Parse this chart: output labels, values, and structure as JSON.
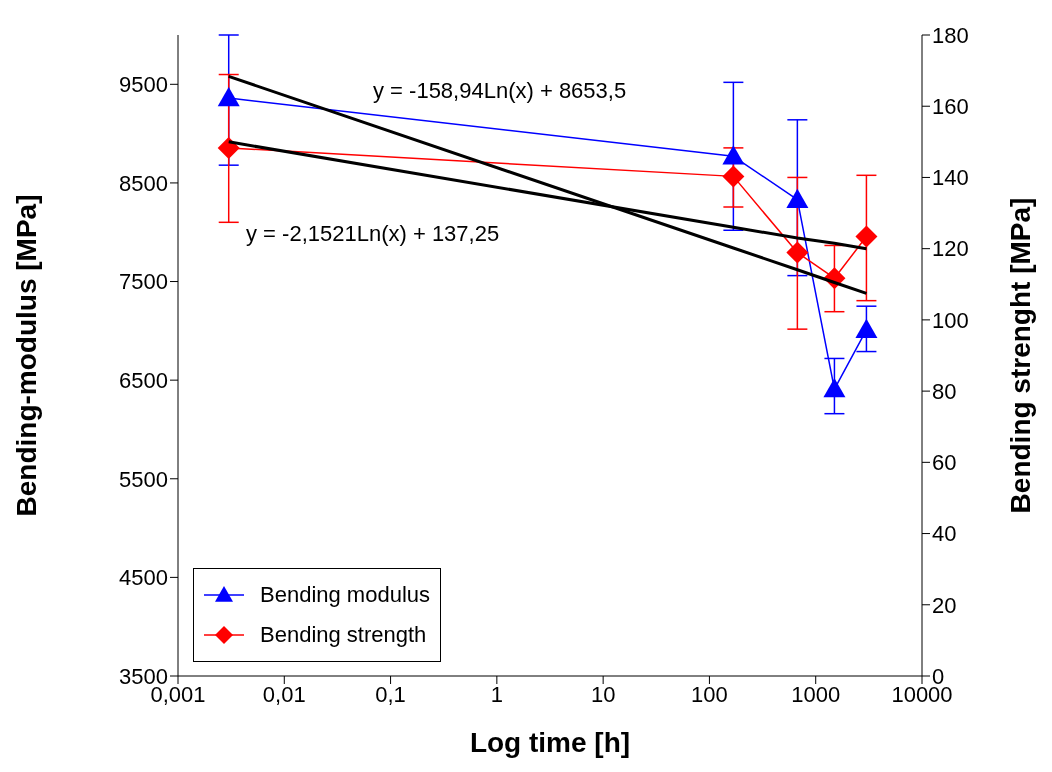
{
  "chart_data": {
    "type": "line",
    "xlabel": "Log time [h]",
    "ylabel": "Bending-modulus [MPa]",
    "y2label": "Bending strenght [MPa]",
    "log": "x",
    "xlim": [
      0.001,
      10000
    ],
    "xticks": [
      {
        "value": 0.001,
        "label": "0,001"
      },
      {
        "value": 0.01,
        "label": "0,01"
      },
      {
        "value": 0.1,
        "label": "0,1"
      },
      1,
      10,
      100,
      1000,
      10000
    ],
    "ylim": [
      3500,
      10000
    ],
    "yticks": [
      3500,
      4500,
      5500,
      6500,
      7500,
      8500,
      9500
    ],
    "y2lim": [
      0,
      180
    ],
    "y2ticks": [
      0,
      20,
      40,
      60,
      80,
      100,
      120,
      140,
      160,
      180
    ],
    "grid": false,
    "legend": "bottom left",
    "annotations": [
      "y = -158,94Ln(x) + 8653,5",
      "y = -2,1521Ln(x) + 137,25"
    ],
    "series": [
      {
        "name": "Bending modulus",
        "color": "#0000ff",
        "marker": "triangle",
        "x": [
          0.003,
          168,
          672,
          1500,
          3000
        ],
        "values": [
          9360,
          8770,
          8330,
          6410,
          7010
        ],
        "errors": [
          [
            8680,
            10000
          ],
          [
            8020,
            9520
          ],
          [
            7560,
            9140
          ],
          [
            6160,
            6720
          ],
          [
            6790,
            7250
          ]
        ]
      },
      {
        "name": "Bending strength",
        "axis": "y2",
        "color": "#ff0000",
        "marker": "diamond",
        "x": [
          0.003,
          168,
          672,
          1500,
          3000
        ],
        "values": [
          148.3,
          140.3,
          118.9,
          111.7,
          123.4
        ],
        "errors": [
          [
            127.4,
            168.9
          ],
          [
            131.7,
            148.3
          ],
          [
            97.4,
            140
          ],
          [
            102.3,
            120.9
          ],
          [
            105.4,
            140.6
          ]
        ]
      },
      {
        "type": "line",
        "color": "#000000",
        "marker": "none",
        "x": [
          0.003,
          168,
          672,
          1500,
          3000
        ],
        "values": [
          9580,
          7840,
          7620,
          7490,
          7380
        ]
      },
      {
        "type": "line",
        "axis": "y2",
        "color": "#000000",
        "marker": "none",
        "x": [
          0.003,
          168,
          672,
          1500,
          3000
        ],
        "values": [
          150,
          126,
          123,
          121.5,
          120
        ]
      }
    ]
  }
}
